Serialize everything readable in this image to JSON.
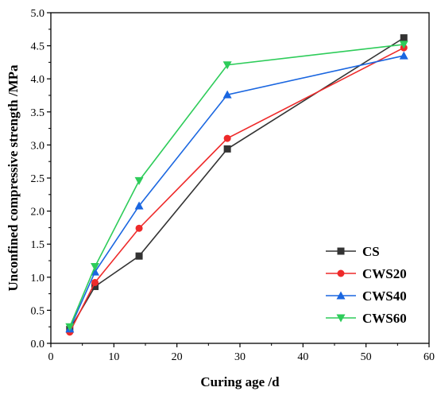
{
  "chart_data": {
    "type": "line",
    "xlabel": "Curing age /d",
    "ylabel": "Unconfined compressive strength /MPa",
    "xlim": [
      0,
      60
    ],
    "ylim": [
      0.0,
      5.0
    ],
    "x_ticks": [
      "0",
      "10",
      "20",
      "30",
      "40",
      "50",
      "60"
    ],
    "y_ticks": [
      "0.0",
      "0.5",
      "1.0",
      "1.5",
      "2.0",
      "2.5",
      "3.0",
      "3.5",
      "4.0",
      "4.5",
      "5.0"
    ],
    "grid": false,
    "legend_position": "bottom-right",
    "x": [
      3,
      7,
      14,
      28,
      56
    ],
    "series": [
      {
        "name": "CS",
        "color": "#333333",
        "marker": "square",
        "values": [
          0.21,
          0.86,
          1.32,
          2.94,
          4.62
        ]
      },
      {
        "name": "CWS20",
        "color": "#ee2a2a",
        "marker": "circle",
        "values": [
          0.17,
          0.92,
          1.74,
          3.1,
          4.47
        ]
      },
      {
        "name": "CWS40",
        "color": "#1a66e0",
        "marker": "triangle-up",
        "values": [
          0.22,
          1.08,
          2.08,
          3.76,
          4.35
        ]
      },
      {
        "name": "CWS60",
        "color": "#2ecc5a",
        "marker": "triangle-down",
        "values": [
          0.25,
          1.16,
          2.46,
          4.21,
          4.52
        ]
      }
    ]
  }
}
